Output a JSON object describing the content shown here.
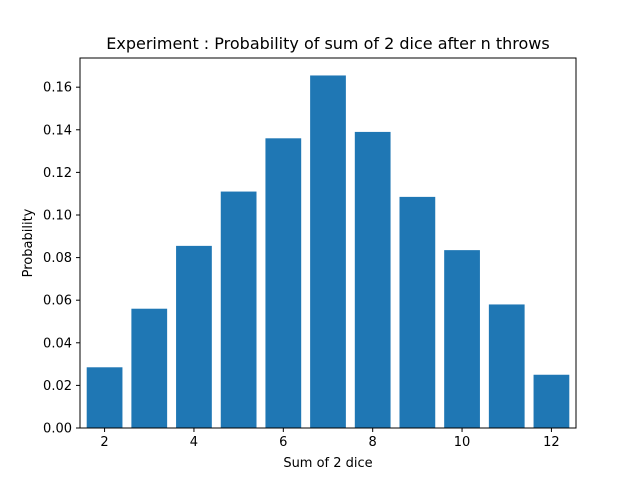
{
  "chart_data": {
    "type": "bar",
    "title": "Experiment : Probability of sum of 2 dice after n throws",
    "xlabel": "Sum of 2 dice",
    "ylabel": "Probability",
    "x": [
      2,
      3,
      4,
      5,
      6,
      7,
      8,
      9,
      10,
      11,
      12
    ],
    "values": [
      0.0285,
      0.056,
      0.0855,
      0.111,
      0.136,
      0.1655,
      0.139,
      0.1085,
      0.0835,
      0.058,
      0.025
    ],
    "xlim": [
      1.45,
      12.55
    ],
    "ylim": [
      0,
      0.1737
    ],
    "xticks": [
      2,
      4,
      6,
      8,
      10,
      12
    ],
    "xtick_labels": [
      "2",
      "4",
      "6",
      "8",
      "10",
      "12"
    ],
    "yticks": [
      0,
      0.02,
      0.04,
      0.06,
      0.08,
      0.1,
      0.12,
      0.14,
      0.16
    ],
    "ytick_labels": [
      "0.00",
      "0.02",
      "0.04",
      "0.06",
      "0.08",
      "0.10",
      "0.12",
      "0.14",
      "0.16"
    ],
    "bar_color": "#1f77b4",
    "grid": false
  }
}
